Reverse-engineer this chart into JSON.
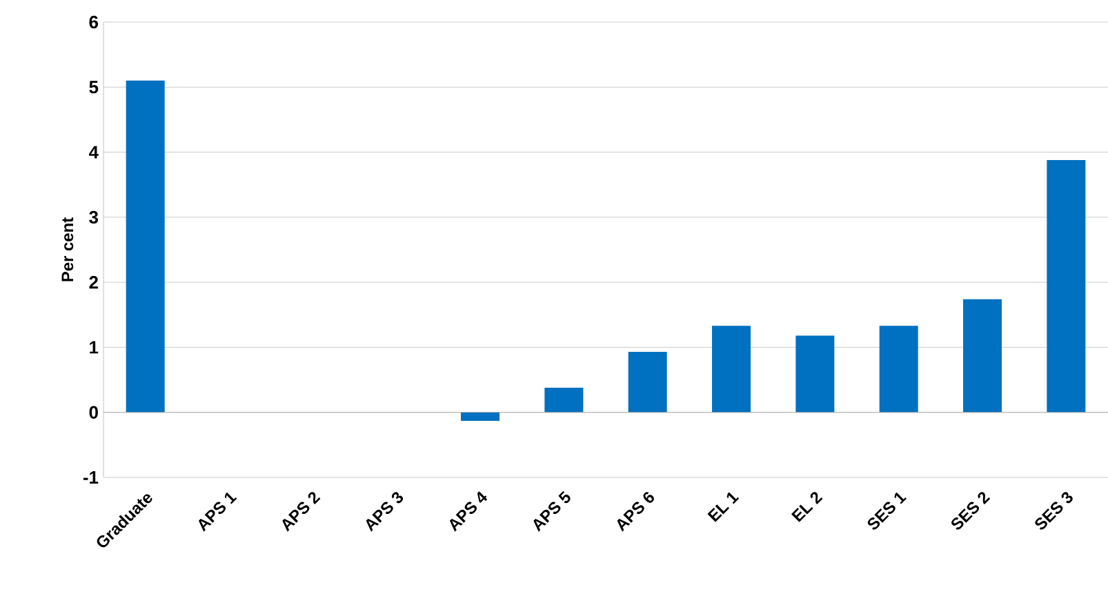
{
  "chart_data": {
    "type": "bar",
    "ylabel": "Per cent",
    "categories": [
      "Graduate",
      "APS 1",
      "APS 2",
      "APS 3",
      "APS 4",
      "APS 5",
      "APS 6",
      "EL 1",
      "EL 2",
      "SES 1",
      "SES 2",
      "SES 3"
    ],
    "values": [
      5.1,
      0,
      0,
      0,
      -0.13,
      0.38,
      0.93,
      1.33,
      1.18,
      1.33,
      1.74,
      3.88
    ],
    "color": "#0070c0",
    "ylim": [
      -1,
      6
    ],
    "yticks": [
      -1,
      0,
      1,
      2,
      3,
      4,
      5,
      6
    ],
    "grid": "y"
  }
}
